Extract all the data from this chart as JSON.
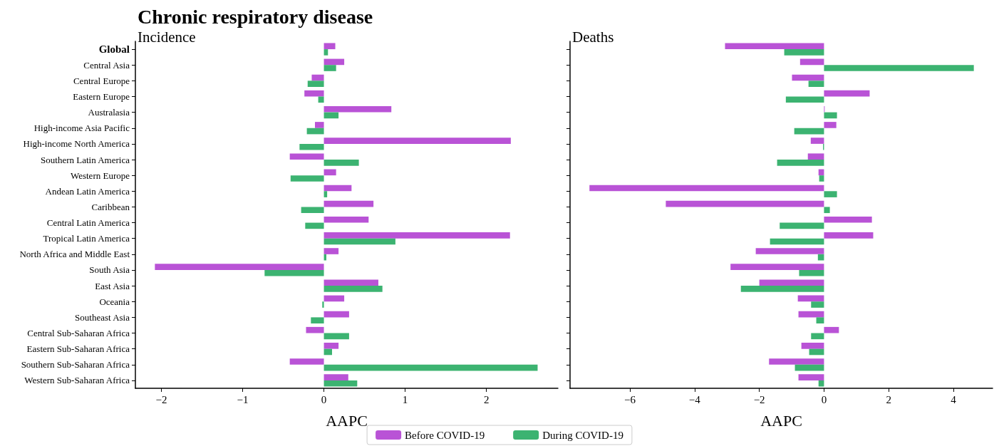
{
  "chart_data": [
    {
      "type": "bar",
      "orientation": "horizontal",
      "title": "Chronic respiratory disease",
      "subtitle": "Incidence",
      "xlabel": "AAPC",
      "categories": [
        "Global",
        "Central Asia",
        "Central Europe",
        "Eastern Europe",
        "Australasia",
        "High-income Asia Pacific",
        "High-income North America",
        "Southern Latin America",
        "Western Europe",
        "Andean Latin America",
        "Caribbean",
        "Central Latin America",
        "Tropical Latin America",
        "North Africa and Middle East",
        "South Asia",
        "East Asia",
        "Oceania",
        "Southeast Asia",
        "Central Sub-Saharan Africa",
        "Eastern Sub-Saharan Africa",
        "Southern Sub-Saharan Africa",
        "Western Sub-Saharan Africa"
      ],
      "series": [
        {
          "name": "Before COVID-19",
          "color": "#b953d6",
          "values": [
            0.14,
            0.25,
            -0.15,
            -0.24,
            0.83,
            -0.11,
            2.3,
            -0.42,
            0.15,
            0.34,
            0.61,
            0.55,
            2.29,
            0.18,
            -2.08,
            0.67,
            0.25,
            0.31,
            -0.22,
            0.18,
            -0.42,
            0.3
          ]
        },
        {
          "name": "During COVID-19",
          "color": "#3cb371",
          "values": [
            0.05,
            0.15,
            -0.2,
            -0.07,
            0.18,
            -0.21,
            -0.3,
            0.43,
            -0.41,
            0.04,
            -0.28,
            -0.23,
            0.88,
            0.03,
            -0.73,
            0.72,
            -0.02,
            -0.16,
            0.31,
            0.1,
            2.63,
            0.41
          ]
        }
      ],
      "xlim": [
        -2.32,
        2.88
      ],
      "xticks": [
        {
          "value": -2,
          "label": "−2"
        },
        {
          "value": -1,
          "label": "−1"
        },
        0,
        1,
        2
      ],
      "legend": "bottom",
      "grid": false
    },
    {
      "type": "bar",
      "orientation": "horizontal",
      "title": "Deaths",
      "xlabel": "AAPC",
      "categories": [
        null,
        null,
        null,
        null,
        null,
        null,
        null,
        null,
        null,
        null,
        null,
        null,
        null,
        null,
        null,
        null,
        null,
        null,
        null,
        null,
        null,
        null
      ],
      "series": [
        {
          "color": "#b953d6",
          "values": [
            -3.06,
            -0.74,
            -0.99,
            1.41,
            0.02,
            0.38,
            -0.41,
            -0.5,
            -0.17,
            -7.25,
            -4.89,
            1.48,
            1.52,
            -2.11,
            -2.89,
            -2.0,
            -0.81,
            -0.79,
            0.46,
            -0.7,
            -1.7,
            -0.79
          ]
        },
        {
          "color": "#3cb371",
          "values": [
            -1.23,
            4.63,
            -0.48,
            -1.18,
            0.4,
            -0.92,
            -0.03,
            -1.45,
            -0.15,
            0.4,
            0.18,
            -1.37,
            -1.67,
            -0.19,
            -0.77,
            -2.57,
            -0.4,
            -0.24,
            -0.4,
            -0.46,
            -0.9,
            -0.17
          ]
        }
      ],
      "xlim": [
        -7.85,
        5.21
      ],
      "xticks": [
        {
          "value": -6,
          "label": "−6"
        },
        {
          "value": -4,
          "label": "−4"
        },
        {
          "value": -2,
          "label": "−2"
        },
        0,
        2,
        4
      ],
      "tick_labels": "x",
      "grid": false
    }
  ]
}
